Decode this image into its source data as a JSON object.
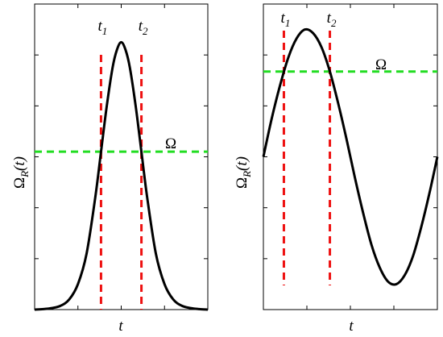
{
  "chart_data": [
    {
      "type": "line",
      "title": "",
      "xlabel": "t",
      "ylabel": {
        "base": "Ω",
        "sub": "R",
        "arg": "(t)"
      },
      "xlim": [
        -3,
        3
      ],
      "ylim": [
        0,
        1.2
      ],
      "grid": false,
      "series": [
        {
          "x": [
            -3.0,
            -2.7,
            -2.4,
            -2.1,
            -1.8,
            -1.5,
            -1.2,
            -0.9,
            -0.7,
            -0.5,
            -0.3,
            -0.15,
            0.0,
            0.15,
            0.3,
            0.5,
            0.7,
            0.9,
            1.2,
            1.5,
            1.8,
            2.1,
            2.4,
            2.7,
            3.0
          ],
          "y": [
            0.0,
            0.002,
            0.006,
            0.015,
            0.04,
            0.1,
            0.22,
            0.44,
            0.62,
            0.8,
            0.95,
            1.02,
            1.05,
            1.02,
            0.95,
            0.8,
            0.62,
            0.44,
            0.22,
            0.1,
            0.04,
            0.015,
            0.006,
            0.002,
            0.0
          ]
        }
      ],
      "hline": {
        "y": 0.62,
        "label": "Ω"
      },
      "vlines": [
        {
          "x": -0.7,
          "label": {
            "base": "t",
            "sub": "1"
          }
        },
        {
          "x": 0.7,
          "label": {
            "base": "t",
            "sub": "2"
          }
        }
      ]
    },
    {
      "type": "line",
      "title": "",
      "xlabel": "t",
      "ylabel": {
        "base": "Ω",
        "sub": "R",
        "arg": "(t)"
      },
      "xlim": [
        0,
        6.28
      ],
      "ylim": [
        -1.2,
        1.2
      ],
      "grid": false,
      "series": [
        {
          "x": [
            0.0,
            0.3,
            0.6,
            0.9,
            1.2,
            1.5,
            1.8,
            2.1,
            2.4,
            2.7,
            3.0,
            3.3,
            3.6,
            3.9,
            4.2,
            4.5,
            4.8,
            5.1,
            5.4,
            5.7,
            6.0,
            6.28
          ],
          "y": [
            0.0,
            0.3,
            0.56,
            0.78,
            0.93,
            1.0,
            0.97,
            0.86,
            0.67,
            0.42,
            0.14,
            -0.16,
            -0.44,
            -0.69,
            -0.87,
            -0.98,
            -1.0,
            -0.93,
            -0.78,
            -0.55,
            -0.28,
            0.0
          ]
        }
      ],
      "hline": {
        "y": 0.67,
        "label": "Ω"
      },
      "vlines": [
        {
          "x": 0.74,
          "label": {
            "base": "t",
            "sub": "1"
          }
        },
        {
          "x": 2.4,
          "label": {
            "base": "t",
            "sub": "2"
          }
        }
      ]
    }
  ]
}
